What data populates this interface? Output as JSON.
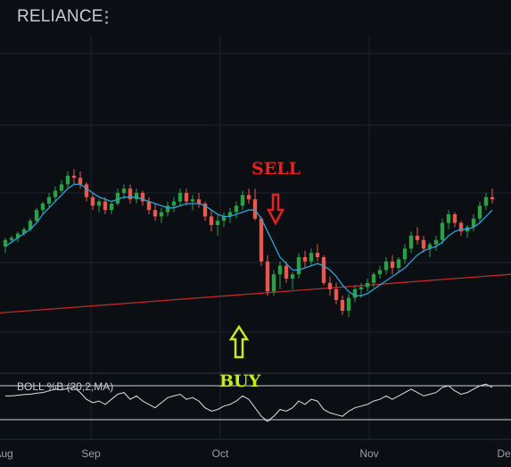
{
  "header": {
    "title": "RELIANCE",
    "menu_icon": "vertical-dots-icon"
  },
  "colors": {
    "background": "#0b0e13",
    "up_candle": "#2aa145",
    "down_candle": "#e8584c",
    "ma_line": "#2fa3d6",
    "long_ma_line": "#c0282a",
    "sell_marker": "#e6211f",
    "buy_marker": "#c6ec1c",
    "indicator_line": "#e0e0e0"
  },
  "annotations": {
    "sell_label": "SELL",
    "buy_label": "BUY"
  },
  "indicator": {
    "label": "BOLL %B (20,2,MA)"
  },
  "chart_data": {
    "type": "candlestick",
    "title": "RELIANCE",
    "x_tick_labels": [
      "Aug",
      "Sep",
      "Oct",
      "Nov",
      "Dec"
    ],
    "grid": true,
    "price_range": [
      0,
      100
    ],
    "candles": [
      [
        35,
        39,
        32,
        38
      ],
      [
        38,
        40,
        37,
        39
      ],
      [
        39,
        42,
        37,
        41
      ],
      [
        41,
        44,
        40,
        43
      ],
      [
        43,
        48,
        42,
        47
      ],
      [
        47,
        53,
        46,
        52
      ],
      [
        52,
        56,
        50,
        55
      ],
      [
        55,
        60,
        53,
        58
      ],
      [
        58,
        63,
        56,
        61
      ],
      [
        61,
        66,
        60,
        64
      ],
      [
        64,
        70,
        62,
        68
      ],
      [
        68,
        71,
        64,
        67
      ],
      [
        67,
        70,
        62,
        64
      ],
      [
        64,
        65,
        56,
        58
      ],
      [
        58,
        60,
        52,
        54
      ],
      [
        54,
        57,
        51,
        56
      ],
      [
        56,
        58,
        50,
        52
      ],
      [
        52,
        56,
        50,
        55
      ],
      [
        55,
        62,
        54,
        60
      ],
      [
        60,
        64,
        57,
        62
      ],
      [
        62,
        64,
        55,
        57
      ],
      [
        57,
        62,
        55,
        60
      ],
      [
        60,
        61,
        54,
        56
      ],
      [
        56,
        58,
        50,
        52
      ],
      [
        52,
        55,
        47,
        49
      ],
      [
        49,
        53,
        46,
        51
      ],
      [
        51,
        56,
        49,
        54
      ],
      [
        54,
        58,
        51,
        56
      ],
      [
        56,
        62,
        54,
        60
      ],
      [
        60,
        62,
        54,
        56
      ],
      [
        56,
        59,
        52,
        57
      ],
      [
        57,
        60,
        53,
        55
      ],
      [
        55,
        56,
        47,
        49
      ],
      [
        49,
        52,
        42,
        45
      ],
      [
        45,
        50,
        40,
        47
      ],
      [
        47,
        51,
        44,
        49
      ],
      [
        49,
        53,
        46,
        51
      ],
      [
        51,
        56,
        48,
        54
      ],
      [
        54,
        61,
        52,
        59
      ],
      [
        59,
        62,
        55,
        57
      ],
      [
        57,
        62,
        47,
        48
      ],
      [
        48,
        49,
        26,
        28
      ],
      [
        28,
        31,
        12,
        14
      ],
      [
        14,
        24,
        12,
        22
      ],
      [
        22,
        28,
        15,
        26
      ],
      [
        26,
        28,
        18,
        20
      ],
      [
        20,
        23,
        15,
        22
      ],
      [
        22,
        32,
        20,
        30
      ],
      [
        30,
        33,
        25,
        28
      ],
      [
        28,
        34,
        26,
        32
      ],
      [
        32,
        36,
        28,
        30
      ],
      [
        30,
        31,
        17,
        18
      ],
      [
        18,
        21,
        12,
        15
      ],
      [
        15,
        18,
        8,
        10
      ],
      [
        10,
        12,
        3,
        5
      ],
      [
        5,
        13,
        2,
        11
      ],
      [
        11,
        17,
        9,
        15
      ],
      [
        15,
        18,
        11,
        16
      ],
      [
        16,
        20,
        14,
        18
      ],
      [
        18,
        23,
        16,
        22
      ],
      [
        22,
        26,
        20,
        24
      ],
      [
        24,
        30,
        22,
        28
      ],
      [
        28,
        31,
        22,
        25
      ],
      [
        25,
        30,
        23,
        29
      ],
      [
        29,
        36,
        27,
        34
      ],
      [
        34,
        42,
        32,
        40
      ],
      [
        40,
        44,
        36,
        38
      ],
      [
        38,
        40,
        32,
        34
      ],
      [
        34,
        37,
        30,
        36
      ],
      [
        36,
        40,
        33,
        38
      ],
      [
        38,
        48,
        36,
        46
      ],
      [
        46,
        52,
        43,
        50
      ],
      [
        50,
        51,
        44,
        46
      ],
      [
        46,
        47,
        40,
        42
      ],
      [
        42,
        45,
        39,
        44
      ],
      [
        44,
        50,
        42,
        48
      ],
      [
        48,
        56,
        46,
        54
      ],
      [
        54,
        60,
        52,
        58
      ],
      [
        58,
        62,
        55,
        57
      ]
    ],
    "series": [
      {
        "values": [
          35,
          37,
          39,
          41,
          43,
          46,
          50,
          53,
          56,
          59,
          62,
          64,
          64,
          62,
          60,
          58,
          57,
          56,
          57,
          58,
          58,
          58,
          57,
          56,
          55,
          54,
          53,
          53,
          54,
          55,
          55,
          55,
          54,
          52,
          50,
          49,
          49,
          50,
          51,
          52,
          52,
          48,
          42,
          36,
          30,
          27,
          24,
          24,
          25,
          26,
          27,
          26,
          24,
          21,
          17,
          14,
          12,
          12,
          13,
          15,
          17,
          19,
          21,
          23,
          25,
          28,
          31,
          33,
          34,
          35,
          37,
          40,
          42,
          43,
          43,
          44,
          46,
          49,
          52
        ]
      },
      {
        "name": "",
        "values": [
          4,
          6,
          8,
          10,
          12,
          14,
          16,
          18,
          20,
          22
        ]
      }
    ],
    "indicator_values": [
      0.7,
      0.7,
      0.72,
      0.74,
      0.75,
      0.78,
      0.8,
      0.85,
      0.9,
      0.88,
      0.92,
      0.95,
      0.8,
      0.6,
      0.5,
      0.55,
      0.45,
      0.6,
      0.75,
      0.8,
      0.6,
      0.7,
      0.55,
      0.45,
      0.35,
      0.5,
      0.65,
      0.7,
      0.75,
      0.6,
      0.65,
      0.55,
      0.35,
      0.25,
      0.3,
      0.4,
      0.45,
      0.55,
      0.7,
      0.6,
      0.35,
      0.1,
      -0.05,
      0.1,
      0.3,
      0.25,
      0.35,
      0.55,
      0.45,
      0.6,
      0.55,
      0.3,
      0.2,
      0.15,
      0.1,
      0.25,
      0.35,
      0.4,
      0.45,
      0.55,
      0.6,
      0.7,
      0.6,
      0.7,
      0.8,
      0.9,
      0.8,
      0.7,
      0.75,
      0.8,
      0.95,
      1.0,
      0.85,
      0.75,
      0.8,
      0.9,
      1.0,
      1.05,
      0.95
    ]
  }
}
